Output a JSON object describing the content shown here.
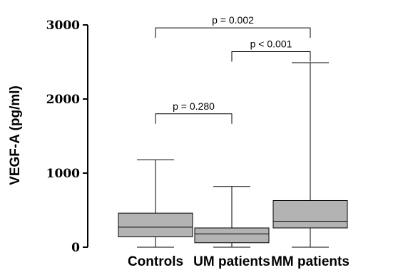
{
  "chart_data": {
    "type": "box",
    "ylabel": "VEGF-A (pg/ml)",
    "ylim": [
      0,
      3000
    ],
    "yticks": [
      0,
      1000,
      2000,
      3000
    ],
    "categories": [
      "Controls",
      "UM patients",
      "MM patients"
    ],
    "boxes": [
      {
        "min": 0,
        "q1": 140,
        "median": 270,
        "q3": 460,
        "max": 1180
      },
      {
        "min": 0,
        "q1": 60,
        "median": 180,
        "q3": 260,
        "max": 820
      },
      {
        "min": 0,
        "q1": 260,
        "median": 350,
        "q3": 630,
        "max": 2490
      }
    ],
    "box_color": "#b3b3b3",
    "comparisons": [
      {
        "from": 0,
        "to": 1,
        "y": 1800,
        "label": "p = 0.280"
      },
      {
        "from": 1,
        "to": 2,
        "y": 2640,
        "label": "p < 0.001"
      },
      {
        "from": 0,
        "to": 2,
        "y": 2960,
        "label": "p = 0.002"
      }
    ]
  }
}
